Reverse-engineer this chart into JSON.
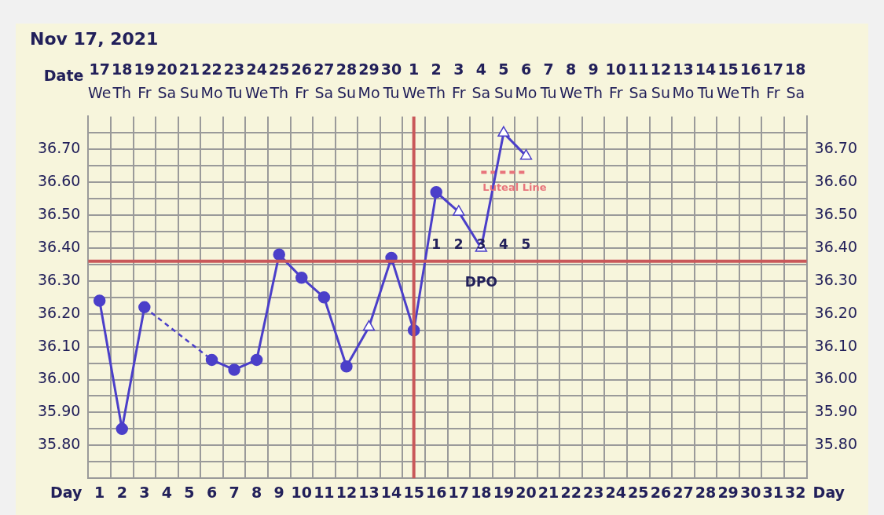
{
  "chart_data": {
    "type": "line",
    "title": "Nov 17, 2021",
    "xlabel": "Day",
    "x2label": "Date",
    "xlim": [
      0.5,
      32.5
    ],
    "xticks": [
      1,
      2,
      3,
      4,
      5,
      6,
      7,
      8,
      9,
      10,
      11,
      12,
      13,
      14,
      15,
      16,
      17,
      18,
      19,
      20,
      21,
      22,
      23,
      24,
      25,
      26,
      27,
      28,
      29,
      30,
      31,
      32
    ],
    "ylim": [
      35.7,
      36.8
    ],
    "yticks": [
      {
        "value": 35.75,
        "label": null
      },
      {
        "value": 35.8,
        "label": "35.80"
      },
      {
        "value": 35.85,
        "label": null
      },
      {
        "value": 35.9,
        "label": "35.90"
      },
      {
        "value": 35.95,
        "label": null
      },
      {
        "value": 36.0,
        "label": "36.00"
      },
      {
        "value": 36.05,
        "label": null
      },
      {
        "value": 36.1,
        "label": "36.10"
      },
      {
        "value": 36.15,
        "label": null
      },
      {
        "value": 36.2,
        "label": "36.20"
      },
      {
        "value": 36.25,
        "label": null
      },
      {
        "value": 36.3,
        "label": "36.30"
      },
      {
        "value": 36.35,
        "label": null
      },
      {
        "value": 36.4,
        "label": "36.40"
      },
      {
        "value": 36.45,
        "label": null
      },
      {
        "value": 36.5,
        "label": "36.50"
      },
      {
        "value": 36.55,
        "label": null
      },
      {
        "value": 36.6,
        "label": "36.60"
      },
      {
        "value": 36.65,
        "label": null
      },
      {
        "value": 36.7,
        "label": "36.70"
      },
      {
        "value": 36.75,
        "label": null
      }
    ],
    "y2lim": [
      35.7,
      36.8
    ],
    "y2ticks": [
      {
        "value": 35.8,
        "label": "35.80"
      },
      {
        "value": 35.9,
        "label": "35.90"
      },
      {
        "value": 36.0,
        "label": "36.00"
      },
      {
        "value": 36.1,
        "label": "36.10"
      },
      {
        "value": 36.2,
        "label": "36.20"
      },
      {
        "value": 36.3,
        "label": "36.30"
      },
      {
        "value": 36.4,
        "label": "36.40"
      },
      {
        "value": 36.5,
        "label": "36.50"
      },
      {
        "value": 36.6,
        "label": "36.60"
      },
      {
        "value": 36.7,
        "label": "36.70"
      }
    ],
    "grid": true,
    "legend": false,
    "series": [
      {
        "type": "line",
        "color": "#4b3fc9",
        "marker": "none",
        "line_style": "solid",
        "x": [
          1,
          2,
          3,
          4,
          5,
          6,
          7,
          8,
          9,
          10,
          11,
          12,
          13,
          14,
          15,
          16,
          17,
          18,
          19,
          20
        ],
        "values": [
          36.24,
          35.85,
          36.22,
          null,
          null,
          36.06,
          36.03,
          36.06,
          36.38,
          36.31,
          36.25,
          36.04,
          36.16,
          36.37,
          36.15,
          36.57,
          36.51,
          36.4,
          36.75,
          36.68
        ]
      },
      {
        "type": "scatter",
        "color": "#4b3fc9",
        "marker": "circle",
        "x": [
          1,
          2,
          3,
          6,
          7,
          8,
          9,
          10,
          11,
          12,
          14,
          15,
          16
        ],
        "values": [
          36.24,
          35.85,
          36.22,
          36.06,
          36.03,
          36.06,
          36.38,
          36.31,
          36.25,
          36.04,
          36.37,
          36.15,
          36.57
        ]
      },
      {
        "type": "scatter",
        "color": "#4b3fc9",
        "marker": "triangle",
        "x": [
          13,
          17,
          18,
          19,
          20
        ],
        "values": [
          36.16,
          36.51,
          36.4,
          36.75,
          36.68
        ]
      },
      {
        "type": "line",
        "color": "#e8747c",
        "marker": "none",
        "line_style": "dashed",
        "x": [
          18,
          20
        ],
        "values": [
          36.63,
          36.63
        ]
      }
    ],
    "ref_lines": [
      {
        "axis": "y",
        "value": 36.36,
        "color": "#c9585a"
      },
      {
        "axis": "x",
        "value": 15,
        "color": "#c9585a"
      }
    ],
    "annotations": [
      "17 We",
      "18 Th",
      "19 Fr",
      "20 Sa",
      "21 Su",
      "22 Mo",
      "23 Tu",
      "24 We",
      "25 Th",
      "26 Fr",
      "27 Sa",
      "28 Su",
      "29 Mo",
      "30 Tu",
      "1 We",
      "2 Th",
      "3 Fr",
      "4 Sa",
      "5 Su",
      "6 Mo",
      "7 Tu",
      "8 We",
      "9 Th",
      "10 Fr",
      "11 Sa",
      "12 Su",
      "13 Mo",
      "14 Tu",
      "15 We",
      "16 Th",
      "17 Fr",
      "18 Sa",
      "Luteal Line",
      "1",
      "2",
      "3",
      "4",
      "5",
      "DPO"
    ]
  }
}
